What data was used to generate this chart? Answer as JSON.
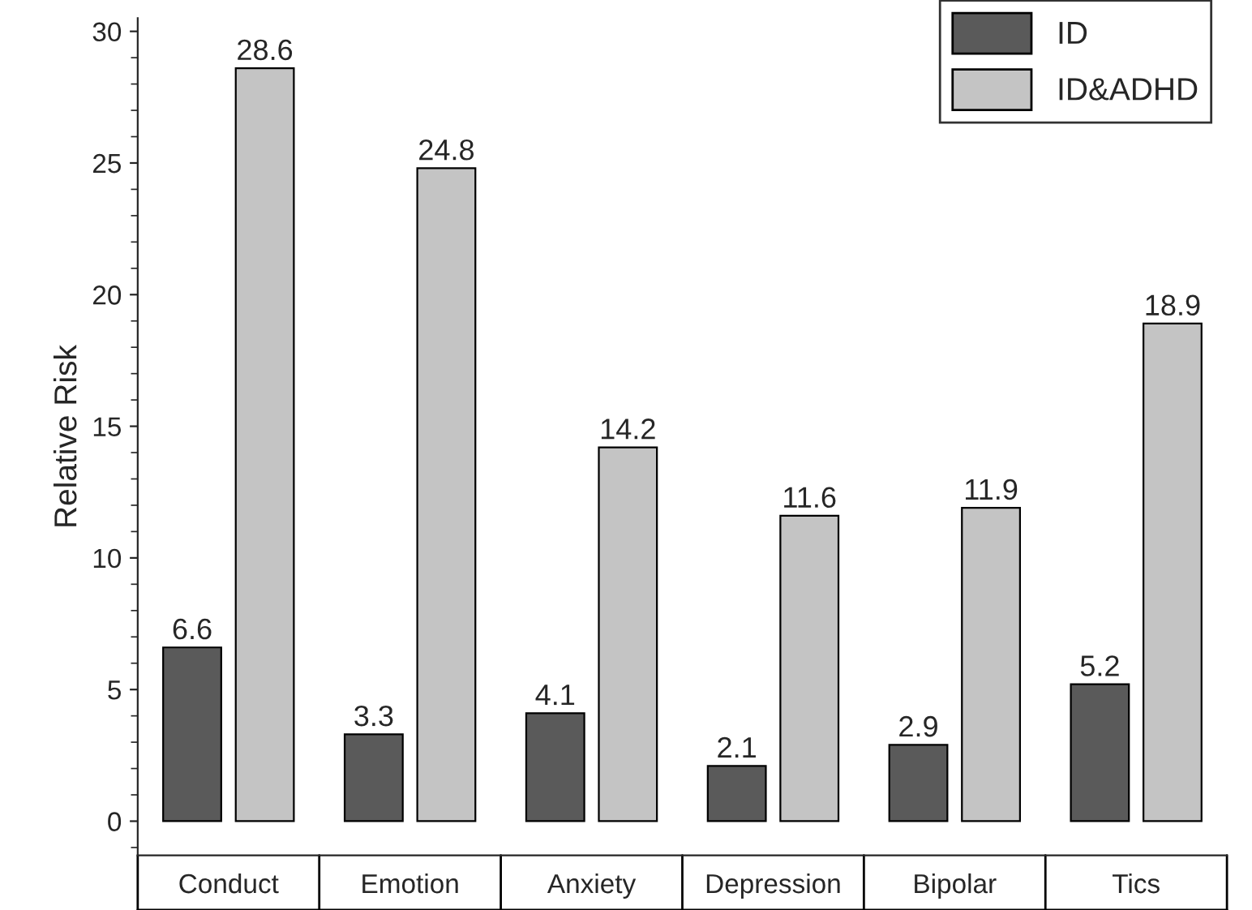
{
  "chart_data": {
    "type": "bar",
    "ylabel": "Relative Risk",
    "categories": [
      "Conduct",
      "Emotion",
      "Anxiety",
      "Depression",
      "Bipolar",
      "Tics"
    ],
    "series": [
      {
        "name": "ID",
        "color": "#5a5a5a",
        "values": [
          6.6,
          3.3,
          4.1,
          2.1,
          2.9,
          5.2
        ]
      },
      {
        "name": "ID&ADHD",
        "color": "#c4c4c4",
        "values": [
          28.6,
          24.8,
          14.2,
          11.6,
          11.9,
          18.9
        ]
      }
    ],
    "ylim": [
      -1.3,
      30.5
    ],
    "yticks": [
      0,
      5,
      10,
      15,
      20,
      25,
      30
    ],
    "data_labels": true,
    "legend": "top right",
    "grid": false
  }
}
